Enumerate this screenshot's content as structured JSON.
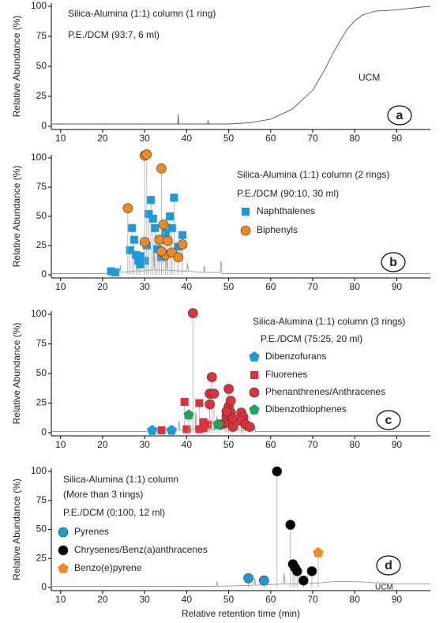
{
  "chart_data": [
    {
      "type": "scatter",
      "y_label": "Relative Abundance (%)",
      "texts": [
        "Silica-Alumina (1:1) column (1 ring)",
        "P.E./DCM (93:7, 6 ml)"
      ],
      "annotation": "UCM",
      "panel_label": "a",
      "xlim": [
        7.8,
        98
      ],
      "xticks": [
        10,
        20,
        30,
        40,
        50,
        60,
        70,
        80,
        90
      ],
      "ylim": [
        0,
        100
      ],
      "yticks": [
        0,
        25,
        50,
        75,
        100
      ],
      "trace": {
        "color": "#555555",
        "x": [
          7.8,
          20,
          30,
          37.9,
          38,
          38.1,
          40,
          45,
          45.1,
          45.2,
          50,
          55,
          60,
          65,
          70,
          73,
          75,
          78,
          80,
          82,
          85,
          90,
          95,
          98
        ],
        "values": [
          2,
          2,
          2,
          2,
          10,
          2,
          2,
          2,
          5,
          2,
          2,
          3,
          6,
          14,
          30,
          48,
          62,
          80,
          88,
          93,
          96,
          97,
          99,
          100
        ]
      },
      "series": []
    },
    {
      "type": "scatter",
      "y_label": "Relative Abundance (%)",
      "texts": [
        "Silica-Alumina (1:1) column (2 rings)",
        "P.E./DCM (90:10, 30 ml)"
      ],
      "panel_label": "b",
      "xlim": [
        7.8,
        98
      ],
      "xticks": [
        10,
        20,
        30,
        40,
        50,
        60,
        70,
        80,
        90
      ],
      "ylim": [
        0,
        100
      ],
      "yticks": [
        0,
        25,
        50,
        75,
        100
      ],
      "trace": {
        "color": "#999999",
        "x": [
          7.8,
          20,
          24,
          24.2,
          24.4,
          28,
          28.2,
          28.4,
          32,
          32.2,
          32.4,
          35,
          35.2,
          35.4,
          40,
          40.2,
          40.4,
          44,
          44.2,
          44.4,
          48,
          48.2,
          48.4,
          55,
          98
        ],
        "values": [
          1,
          1,
          2,
          8,
          2,
          3,
          15,
          3,
          4,
          22,
          4,
          4,
          18,
          4,
          3,
          10,
          3,
          2,
          8,
          2,
          2,
          12,
          1,
          1,
          1
        ]
      },
      "series": [
        {
          "name": "Naphthalenes",
          "color": "#1a9bd7",
          "marker": "square",
          "x": [
            22,
            23,
            26.5,
            27,
            27.5,
            28,
            28.5,
            29,
            29,
            30,
            30.5,
            31,
            31.5,
            32,
            32.5,
            33,
            33.5,
            34,
            35,
            36,
            36.5,
            37,
            38,
            39
          ],
          "values": [
            3,
            2,
            21,
            40,
            30,
            17,
            12,
            16,
            9,
            12,
            25,
            52,
            64,
            48,
            40,
            22,
            30,
            15,
            36,
            50,
            40,
            66,
            24,
            34
          ]
        },
        {
          "name": "Biphenyls",
          "color": "#f08a1e",
          "marker": "circle",
          "x": [
            26,
            30,
            30.5,
            34,
            30,
            33.5,
            34.5,
            35,
            35.5,
            34,
            36.5,
            38,
            39
          ],
          "values": [
            57,
            102,
            103,
            91,
            28,
            30,
            43,
            17,
            29,
            20,
            19,
            15,
            26
          ]
        }
      ]
    },
    {
      "type": "scatter",
      "y_label": "Relative Abundance (%)",
      "texts": [
        "Silica-Alumina (1:1) column (3 rings)",
        "P.E./DCM (75:25, 20 ml)"
      ],
      "panel_label": "c",
      "xlim": [
        7.8,
        98
      ],
      "xticks": [
        10,
        20,
        30,
        40,
        50,
        60,
        70,
        80,
        90
      ],
      "ylim": [
        0,
        100
      ],
      "yticks": [
        0,
        25,
        50,
        75,
        100
      ],
      "trace": {
        "color": "#999999",
        "x": [
          7.8,
          30,
          38,
          38.2,
          38.4,
          42,
          42.2,
          42.4,
          47,
          47.2,
          47.4,
          52,
          52.2,
          52.4,
          56,
          56.2,
          56.4,
          60,
          98
        ],
        "values": [
          1,
          1,
          2,
          10,
          2,
          3,
          18,
          3,
          3,
          14,
          3,
          2,
          12,
          2,
          2,
          6,
          1,
          1,
          1
        ]
      },
      "series": [
        {
          "name": "Dibenzofurans",
          "color": "#1a9bd7",
          "marker": "pentagon",
          "x": [
            31.8,
            36.4
          ],
          "values": [
            2,
            2
          ]
        },
        {
          "name": "Fluorenes",
          "color": "#e0303a",
          "marker": "square",
          "x": [
            34,
            39.5,
            40,
            43,
            43,
            44,
            44,
            45
          ],
          "values": [
            2,
            26,
            3,
            3,
            25,
            9,
            4,
            7
          ]
        },
        {
          "name": "Phenanthrenes/Anthracenes",
          "color": "#e0303a",
          "marker": "circle",
          "x": [
            41.5,
            46,
            45.5,
            46.5,
            45.5,
            50,
            50,
            49.5,
            50.5,
            51,
            49,
            51,
            53,
            53.5,
            53,
            54,
            55,
            50.5,
            49.5,
            48
          ],
          "values": [
            101,
            47,
            33,
            33,
            24,
            37,
            22,
            14,
            17,
            12,
            8,
            5,
            17,
            13,
            10,
            7,
            5,
            27,
            18,
            7
          ]
        },
        {
          "name": "Dibenzothiophenes",
          "color": "#1fa35a",
          "marker": "pentagon",
          "x": [
            40.5,
            47.4
          ],
          "values": [
            15,
            7
          ]
        }
      ]
    },
    {
      "type": "scatter",
      "y_label": "Relative Abundance (%)",
      "x_label": "Relative retention time (min)",
      "texts": [
        "Silica-Alumina (1:1) column",
        "(More than 3 rings)",
        "P.E./DCM (0:100, 12 ml)"
      ],
      "annotation": "UCM",
      "panel_label": "d",
      "xlim": [
        7.8,
        98
      ],
      "xticks": [
        10,
        20,
        30,
        40,
        50,
        60,
        70,
        80,
        90
      ],
      "ylim": [
        0,
        100
      ],
      "yticks": [
        0,
        25,
        50,
        75,
        100
      ],
      "trace": {
        "color": "#999999",
        "x": [
          7.8,
          40,
          47,
          47.2,
          47.4,
          56,
          56.2,
          56.4,
          63,
          63.2,
          63.4,
          67,
          67.2,
          67.4,
          72,
          75,
          80,
          85,
          90,
          98
        ],
        "values": [
          1,
          1,
          1,
          5,
          1,
          2,
          8,
          2,
          3,
          12,
          3,
          3,
          10,
          3,
          4,
          5,
          5,
          4,
          3,
          3
        ]
      },
      "series": [
        {
          "name": "Pyrenes",
          "color": "#1a9bd7",
          "marker": "circle",
          "x": [
            54.7,
            58.4
          ],
          "values": [
            8,
            6
          ]
        },
        {
          "name": "Chrysenes/Benz(a)anthracenes",
          "color": "#000000",
          "marker": "circle",
          "x": [
            61.5,
            64.7,
            65.3,
            65.8,
            66.3,
            67.8,
            69.8
          ],
          "values": [
            100,
            54,
            20,
            17,
            14,
            6,
            14
          ]
        },
        {
          "name": "Benzo(e)pyrene",
          "color": "#f08a1e",
          "marker": "pentagon",
          "x": [
            71.3
          ],
          "values": [
            30
          ]
        }
      ]
    }
  ]
}
